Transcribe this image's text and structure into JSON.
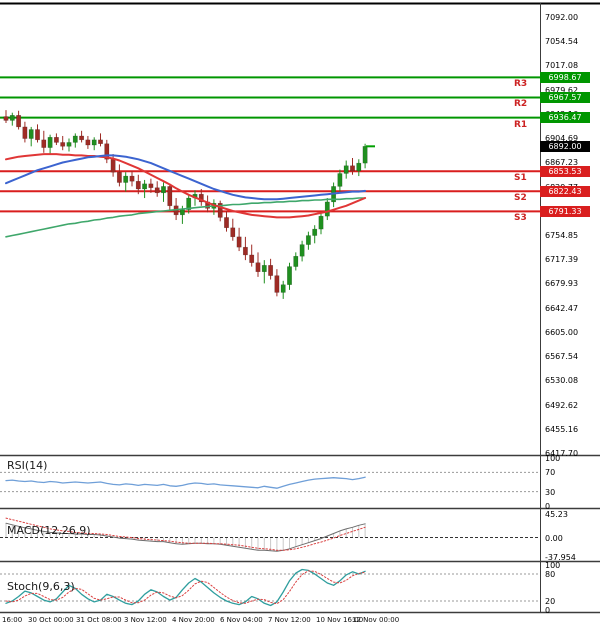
{
  "colors": {
    "resistance_green": "#009600",
    "support_red": "#d91e1e",
    "candle_up": "#1f8f1f",
    "candle_down": "#9e2b25",
    "ma_fast_red": "#e03636",
    "ma_mid_blue": "#3c64d0",
    "ma_slow_green": "#3fa76b",
    "rsi_line": "#6f9fd8",
    "macd_line": "#6d6d6d",
    "macd_signal": "#d94040",
    "stoch_k": "#2f9e9e",
    "stoch_d": "#d94040",
    "current_price_bg": "#000000",
    "separator": "#3c3c3c"
  },
  "price_axis": {
    "labels": [
      "7092.00",
      "7054.54",
      "7017.08",
      "6979.62",
      "6942.16",
      "6904.69",
      "6867.23",
      "6829.77",
      "6792.31",
      "6754.85",
      "6717.39",
      "6679.93",
      "6642.47",
      "6605.00",
      "6567.54",
      "6530.08",
      "6492.62",
      "6455.16",
      "6417.70"
    ]
  },
  "levels": {
    "items": [
      {
        "name": "R3",
        "price": 6998.67,
        "label": "6998.67",
        "type": "resistance"
      },
      {
        "name": "R2",
        "price": 6967.57,
        "label": "6967.57",
        "type": "resistance"
      },
      {
        "name": "R1",
        "price": 6936.47,
        "label": "6936.47",
        "type": "resistance"
      },
      {
        "name": "S1",
        "price": 6853.53,
        "label": "6853.53",
        "type": "support"
      },
      {
        "name": "S2",
        "price": 6822.43,
        "label": "6822.43",
        "type": "support"
      },
      {
        "name": "S3",
        "price": 6791.33,
        "label": "6791.33",
        "type": "support"
      }
    ],
    "current_price": {
      "label": "6892.00",
      "price": 6892.0
    }
  },
  "panels": {
    "rsi": {
      "label": "RSI(14)",
      "axis": [
        {
          "v": 100,
          "t": "100"
        },
        {
          "v": 70,
          "t": "70"
        },
        {
          "v": 30,
          "t": "30"
        },
        {
          "v": 0,
          "t": "0"
        }
      ],
      "dashed": [
        70,
        30
      ]
    },
    "macd": {
      "label": "MACD(12,26,9)",
      "axis": [
        {
          "v": 45.23,
          "t": "45.23"
        },
        {
          "v": 0,
          "t": "0.00"
        },
        {
          "v": -37.954,
          "t": "-37.954"
        }
      ],
      "dashed": [
        0
      ]
    },
    "stoch": {
      "label": "Stoch(9,6,3)",
      "axis": [
        {
          "v": 100,
          "t": "100"
        },
        {
          "v": 80,
          "t": "80"
        },
        {
          "v": 20,
          "t": "20"
        },
        {
          "v": 0,
          "t": "0"
        }
      ],
      "dashed": [
        80,
        20
      ]
    }
  },
  "chart_data": {
    "type": "candlestick",
    "ylim": [
      6417.7,
      7092.0
    ],
    "x_labels": [
      "16:00",
      "30 Oct 00:00",
      "31 Oct 08:00",
      "3 Nov 12:00",
      "4 Nov 20:00",
      "6 Nov 04:00",
      "7 Nov 12:00",
      "10 Nov 16:00",
      "12 Nov 00:00"
    ],
    "ohlc": [
      [
        6938,
        6948,
        6928,
        6932
      ],
      [
        6932,
        6944,
        6924,
        6940
      ],
      [
        6940,
        6947,
        6918,
        6922
      ],
      [
        6922,
        6930,
        6898,
        6904
      ],
      [
        6904,
        6922,
        6892,
        6918
      ],
      [
        6918,
        6926,
        6898,
        6902
      ],
      [
        6902,
        6916,
        6882,
        6890
      ],
      [
        6890,
        6910,
        6880,
        6906
      ],
      [
        6906,
        6912,
        6894,
        6898
      ],
      [
        6898,
        6908,
        6886,
        6892
      ],
      [
        6892,
        6904,
        6884,
        6898
      ],
      [
        6898,
        6912,
        6890,
        6908
      ],
      [
        6908,
        6916,
        6898,
        6902
      ],
      [
        6902,
        6908,
        6888,
        6894
      ],
      [
        6894,
        6906,
        6886,
        6902
      ],
      [
        6902,
        6912,
        6892,
        6896
      ],
      [
        6896,
        6902,
        6866,
        6872
      ],
      [
        6872,
        6880,
        6845,
        6852
      ],
      [
        6852,
        6864,
        6830,
        6836
      ],
      [
        6836,
        6852,
        6822,
        6846
      ],
      [
        6846,
        6854,
        6830,
        6838
      ],
      [
        6838,
        6848,
        6818,
        6826
      ],
      [
        6826,
        6840,
        6812,
        6834
      ],
      [
        6834,
        6842,
        6820,
        6828
      ],
      [
        6828,
        6838,
        6814,
        6820
      ],
      [
        6820,
        6836,
        6806,
        6830
      ],
      [
        6830,
        6834,
        6794,
        6800
      ],
      [
        6800,
        6812,
        6778,
        6786
      ],
      [
        6786,
        6800,
        6772,
        6794
      ],
      [
        6794,
        6818,
        6788,
        6812
      ],
      [
        6812,
        6824,
        6800,
        6818
      ],
      [
        6818,
        6826,
        6800,
        6806
      ],
      [
        6806,
        6816,
        6790,
        6796
      ],
      [
        6796,
        6810,
        6786,
        6804
      ],
      [
        6804,
        6808,
        6776,
        6782
      ],
      [
        6782,
        6792,
        6760,
        6766
      ],
      [
        6766,
        6780,
        6746,
        6752
      ],
      [
        6752,
        6766,
        6730,
        6736
      ],
      [
        6736,
        6752,
        6716,
        6724
      ],
      [
        6724,
        6740,
        6706,
        6712
      ],
      [
        6712,
        6728,
        6690,
        6698
      ],
      [
        6698,
        6716,
        6680,
        6708
      ],
      [
        6708,
        6718,
        6686,
        6692
      ],
      [
        6692,
        6702,
        6660,
        6666
      ],
      [
        6666,
        6684,
        6656,
        6678
      ],
      [
        6678,
        6712,
        6670,
        6706
      ],
      [
        6706,
        6728,
        6700,
        6722
      ],
      [
        6722,
        6746,
        6714,
        6740
      ],
      [
        6740,
        6760,
        6732,
        6754
      ],
      [
        6754,
        6770,
        6742,
        6764
      ],
      [
        6764,
        6790,
        6756,
        6784
      ],
      [
        6784,
        6812,
        6778,
        6806
      ],
      [
        6806,
        6836,
        6798,
        6830
      ],
      [
        6830,
        6856,
        6822,
        6850
      ],
      [
        6850,
        6870,
        6842,
        6862
      ],
      [
        6862,
        6874,
        6848,
        6854
      ],
      [
        6854,
        6872,
        6846,
        6866
      ],
      [
        6866,
        6896,
        6858,
        6892
      ]
    ],
    "overlays": {
      "ma_fast_red": [
        6872,
        6874,
        6876,
        6877,
        6878,
        6879,
        6880,
        6880,
        6880,
        6879,
        6879,
        6878,
        6878,
        6877,
        6877,
        6876,
        6875,
        6873,
        6870,
        6866,
        6862,
        6858,
        6853,
        6848,
        6843,
        6838,
        6833,
        6827,
        6822,
        6817,
        6813,
        6809,
        6805,
        6801,
        6798,
        6795,
        6792,
        6790,
        6788,
        6786,
        6785,
        6784,
        6783,
        6782,
        6782,
        6782,
        6783,
        6784,
        6785,
        6787,
        6789,
        6791,
        6794,
        6797,
        6800,
        6804,
        6808,
        6812
      ],
      "ma_mid_blue": [
        6835,
        6839,
        6843,
        6847,
        6851,
        6855,
        6858,
        6861,
        6864,
        6867,
        6869,
        6871,
        6873,
        6875,
        6876,
        6877,
        6878,
        6878,
        6877,
        6876,
        6874,
        6872,
        6869,
        6866,
        6862,
        6858,
        6854,
        6850,
        6846,
        6842,
        6838,
        6834,
        6830,
        6826,
        6823,
        6820,
        6817,
        6815,
        6813,
        6812,
        6811,
        6810,
        6810,
        6810,
        6811,
        6812,
        6813,
        6814,
        6815,
        6816,
        6817,
        6818,
        6819,
        6820,
        6821,
        6822,
        6822,
        6823
      ],
      "ma_slow_green": [
        6752,
        6754,
        6756,
        6758,
        6760,
        6762,
        6764,
        6766,
        6768,
        6770,
        6772,
        6773,
        6775,
        6776,
        6778,
        6779,
        6781,
        6782,
        6784,
        6785,
        6786,
        6788,
        6789,
        6790,
        6791,
        6792,
        6793,
        6794,
        6795,
        6796,
        6797,
        6798,
        6799,
        6800,
        6800,
        6801,
        6802,
        6802,
        6803,
        6804,
        6804,
        6805,
        6805,
        6806,
        6806,
        6807,
        6807,
        6808,
        6808,
        6809,
        6809,
        6810,
        6810,
        6810,
        6811,
        6811,
        6812,
        6812
      ]
    },
    "indicators": {
      "rsi": [
        53,
        54,
        52,
        51,
        52,
        50,
        49,
        51,
        50,
        48,
        49,
        50,
        49,
        48,
        49,
        50,
        47,
        45,
        44,
        46,
        45,
        43,
        45,
        44,
        43,
        45,
        42,
        41,
        43,
        46,
        48,
        47,
        45,
        46,
        44,
        43,
        42,
        41,
        40,
        39,
        38,
        41,
        39,
        37,
        41,
        45,
        48,
        51,
        54,
        56,
        57,
        58,
        59,
        58,
        57,
        55,
        57,
        60
      ],
      "macd": [
        28,
        25,
        22,
        19,
        17,
        14,
        12,
        10,
        9,
        8,
        8,
        7,
        7,
        6,
        6,
        5,
        3,
        1,
        -1,
        -2,
        -3,
        -5,
        -6,
        -7,
        -8,
        -8,
        -10,
        -12,
        -13,
        -12,
        -11,
        -11,
        -12,
        -12,
        -13,
        -15,
        -17,
        -19,
        -21,
        -23,
        -25,
        -25,
        -26,
        -27,
        -25,
        -22,
        -18,
        -14,
        -10,
        -6,
        -2,
        3,
        8,
        13,
        17,
        20,
        24,
        27
      ],
      "macd_signal": [
        38,
        35,
        32,
        29,
        26,
        23,
        20,
        17,
        15,
        13,
        12,
        10,
        9,
        8,
        8,
        7,
        6,
        4,
        2,
        1,
        0,
        -2,
        -3,
        -4,
        -5,
        -6,
        -7,
        -9,
        -10,
        -11,
        -11,
        -11,
        -11,
        -12,
        -12,
        -13,
        -14,
        -15,
        -17,
        -19,
        -21,
        -22,
        -23,
        -25,
        -25,
        -24,
        -22,
        -19,
        -16,
        -12,
        -9,
        -5,
        -1,
        4,
        8,
        12,
        16,
        20
      ],
      "stoch_k": [
        15,
        20,
        30,
        42,
        38,
        30,
        22,
        18,
        25,
        40,
        55,
        48,
        35,
        25,
        18,
        22,
        35,
        30,
        22,
        15,
        12,
        20,
        35,
        45,
        40,
        30,
        22,
        28,
        45,
        60,
        70,
        62,
        50,
        38,
        28,
        20,
        15,
        12,
        18,
        30,
        25,
        15,
        10,
        18,
        40,
        65,
        82,
        90,
        88,
        80,
        70,
        60,
        55,
        65,
        78,
        85,
        80,
        86
      ],
      "stoch_d": [
        20,
        18,
        22,
        31,
        37,
        37,
        30,
        23,
        22,
        28,
        40,
        48,
        46,
        36,
        26,
        22,
        25,
        29,
        29,
        22,
        16,
        16,
        22,
        33,
        40,
        38,
        31,
        27,
        32,
        44,
        58,
        64,
        61,
        50,
        39,
        29,
        21,
        16,
        15,
        20,
        24,
        23,
        17,
        14,
        23,
        41,
        62,
        79,
        87,
        86,
        79,
        70,
        62,
        60,
        66,
        76,
        81,
        84
      ]
    }
  }
}
